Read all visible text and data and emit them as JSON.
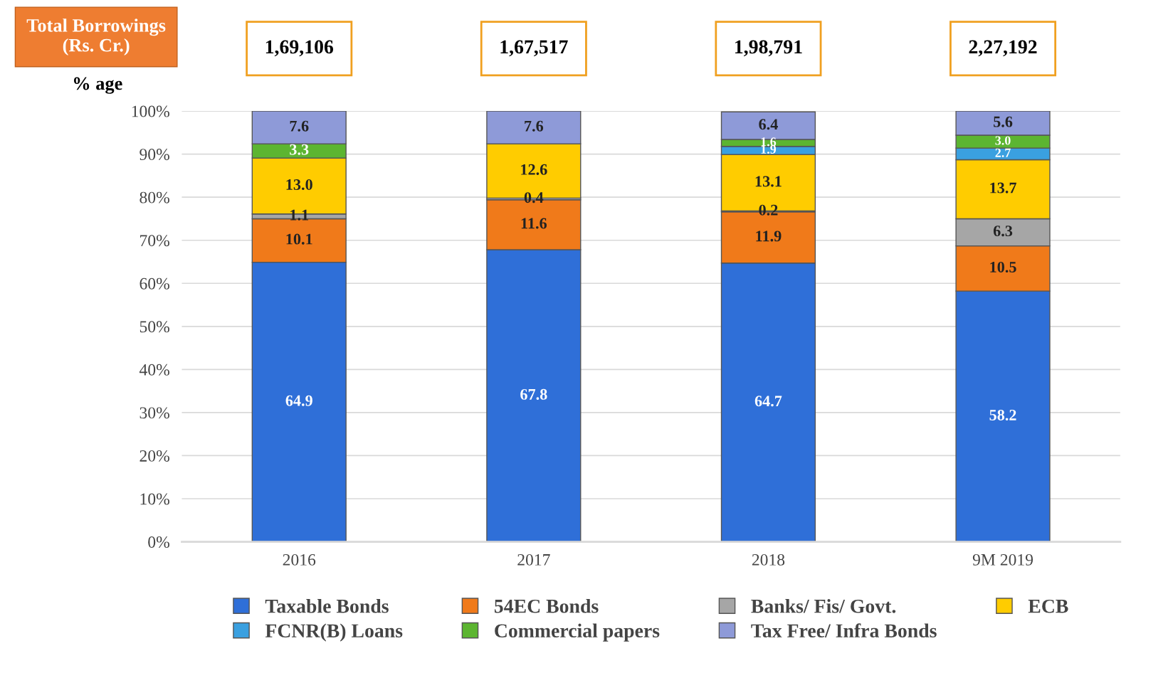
{
  "chart_data": {
    "type": "bar",
    "stacked": true,
    "ylabel": "% age",
    "categories": [
      "2016",
      "2017",
      "2018",
      "9M 2019"
    ],
    "series": [
      {
        "name": "Taxable Bonds",
        "color": "#2f6fd8",
        "values": [
          64.9,
          67.8,
          64.7,
          58.2
        ],
        "value_labels": [
          "64.9",
          "67.8",
          "64.7",
          "58.2"
        ]
      },
      {
        "name": "54EC Bonds",
        "color": "#f07a1a",
        "values": [
          10.1,
          11.6,
          11.9,
          10.5
        ],
        "value_labels": [
          "10.1",
          "11.6",
          "11.9",
          "10.5"
        ]
      },
      {
        "name": "Banks/ Fis/ Govt.",
        "color": "#a6a6a6",
        "values": [
          1.1,
          0.4,
          0.2,
          6.3
        ],
        "value_labels": [
          "1.1",
          "0.4",
          "0.2",
          "6.3"
        ]
      },
      {
        "name": "ECB",
        "color": "#ffcc00",
        "values": [
          13.0,
          12.6,
          13.1,
          13.7
        ],
        "value_labels": [
          "13.0",
          "12.6",
          "13.1",
          "13.7"
        ]
      },
      {
        "name": "FCNR(B) Loans",
        "color": "#3aa0e0",
        "values": [
          null,
          null,
          1.9,
          2.7
        ],
        "value_labels": [
          null,
          null,
          "1.9",
          "2.7"
        ]
      },
      {
        "name": "Commercial papers",
        "color": "#5cb531",
        "values": [
          3.3,
          null,
          1.6,
          3.0
        ],
        "value_labels": [
          "3.3",
          null,
          "1.6",
          "3.0"
        ]
      },
      {
        "name": "Tax Free/ Infra Bonds",
        "color": "#8e9ad8",
        "values": [
          7.6,
          7.6,
          6.4,
          5.6
        ],
        "value_labels": [
          "7.6",
          "7.6",
          "6.4",
          "5.6"
        ]
      }
    ],
    "annotations": [
      "Total Borrowings\n(Rs. Cr.)",
      "1,69,106",
      "1,67,517",
      "1,98,791",
      "2,27,192"
    ],
    "ylim": [
      0,
      100
    ],
    "yticks": [
      {
        "value": 0,
        "label": "0%"
      },
      {
        "value": 10,
        "label": "10%"
      },
      {
        "value": 20,
        "label": "20%"
      },
      {
        "value": 30,
        "label": "30%"
      },
      {
        "value": 40,
        "label": "40%"
      },
      {
        "value": 50,
        "label": "50%"
      },
      {
        "value": 60,
        "label": "60%"
      },
      {
        "value": 70,
        "label": "70%"
      },
      {
        "value": 80,
        "label": "80%"
      },
      {
        "value": 90,
        "label": "90%"
      },
      {
        "value": 100,
        "label": "100%"
      }
    ],
    "grid": "y",
    "legend": "bottom"
  }
}
